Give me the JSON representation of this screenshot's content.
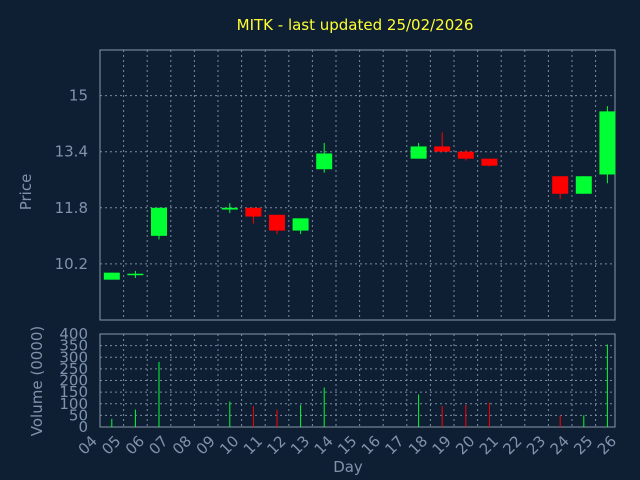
{
  "chart_data": {
    "type": "candlestick",
    "title": "MITK - last updated 25/02/2026",
    "xlabel": "Day",
    "price_panel": {
      "ylabel": "Price",
      "yticks": [
        10.2,
        11.8,
        13.4,
        15
      ],
      "ylim": [
        8.6,
        16.3
      ]
    },
    "volume_panel": {
      "ylabel": "Volume (0000)",
      "yticks": [
        0,
        50,
        100,
        150,
        200,
        250,
        300,
        350,
        400
      ],
      "ylim": [
        0,
        400
      ]
    },
    "x_ticks": [
      "04",
      "05",
      "06",
      "07",
      "08",
      "09",
      "10",
      "11",
      "12",
      "13",
      "14",
      "15",
      "16",
      "17",
      "18",
      "19",
      "20",
      "21",
      "22",
      "23",
      "24",
      "25",
      "26"
    ],
    "grid": true,
    "colors": {
      "up": "#00ff33",
      "down": "#ff0000",
      "grid": "#7a8aa0",
      "title": "#ffff33",
      "text": "#7f93ad",
      "background": "#0f1f33"
    },
    "candles": [
      {
        "day": "04",
        "open": 9.75,
        "close": 9.95,
        "high": 9.95,
        "low": 9.75,
        "volume": 35
      },
      {
        "day": "05",
        "open": 9.88,
        "close": 9.92,
        "high": 10.0,
        "low": 9.8,
        "volume": 75
      },
      {
        "day": "06",
        "open": 11.0,
        "close": 11.8,
        "high": 11.8,
        "low": 10.9,
        "volume": 280
      },
      {
        "day": "09",
        "open": 11.75,
        "close": 11.8,
        "high": 11.93,
        "low": 11.65,
        "volume": 110
      },
      {
        "day": "10",
        "open": 11.8,
        "close": 11.55,
        "high": 11.8,
        "low": 11.35,
        "volume": 90
      },
      {
        "day": "11",
        "open": 11.6,
        "close": 11.15,
        "high": 11.6,
        "low": 11.05,
        "volume": 75
      },
      {
        "day": "12",
        "open": 11.15,
        "close": 11.5,
        "high": 11.5,
        "low": 11.05,
        "volume": 95
      },
      {
        "day": "13",
        "open": 12.9,
        "close": 13.35,
        "high": 13.65,
        "low": 12.8,
        "volume": 170
      },
      {
        "day": "17",
        "open": 13.2,
        "close": 13.55,
        "high": 13.65,
        "low": 13.2,
        "volume": 140
      },
      {
        "day": "18",
        "open": 13.55,
        "close": 13.4,
        "high": 13.95,
        "low": 13.4,
        "volume": 90
      },
      {
        "day": "19",
        "open": 13.4,
        "close": 13.2,
        "high": 13.45,
        "low": 13.15,
        "volume": 95
      },
      {
        "day": "20",
        "open": 13.2,
        "close": 13.0,
        "high": 13.2,
        "low": 12.98,
        "volume": 105
      },
      {
        "day": "23",
        "open": 12.7,
        "close": 12.2,
        "high": 12.7,
        "low": 12.05,
        "volume": 50
      },
      {
        "day": "24",
        "open": 12.2,
        "close": 12.7,
        "high": 12.7,
        "low": 12.2,
        "volume": 50
      },
      {
        "day": "25",
        "open": 12.75,
        "close": 14.55,
        "high": 14.7,
        "low": 12.5,
        "volume": 355
      }
    ]
  }
}
